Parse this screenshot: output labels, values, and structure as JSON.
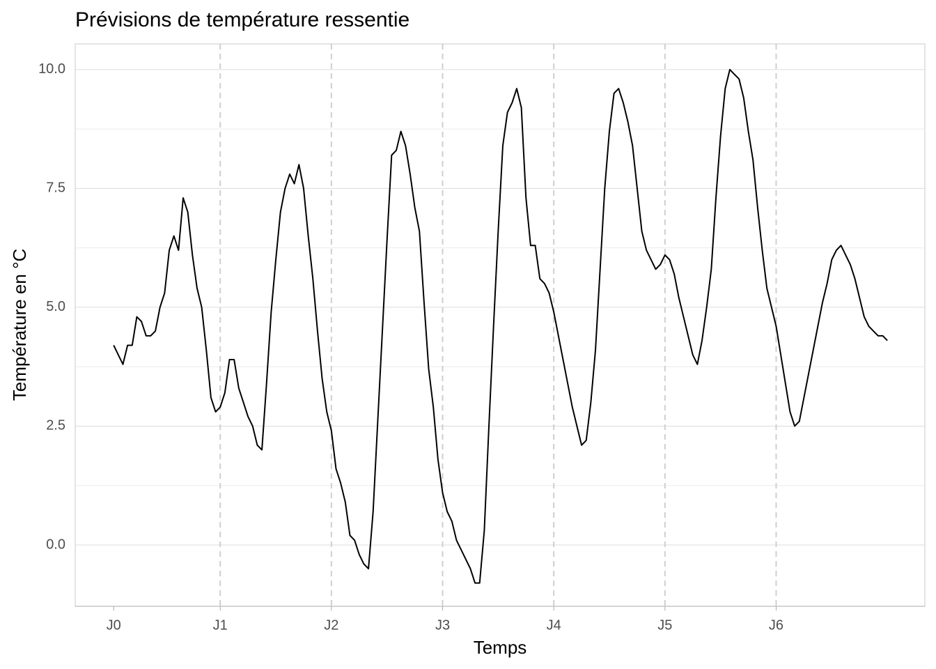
{
  "chart_data": {
    "type": "line",
    "title": "Prévisions de température ressentie",
    "x_label": "Temps",
    "y_label": "Température en °C",
    "x": [
      1,
      2,
      3,
      4,
      5,
      6,
      7,
      8,
      9,
      10,
      11,
      12,
      13,
      14,
      15,
      16,
      17,
      18,
      19,
      20,
      21,
      22,
      23,
      24,
      25,
      26,
      27,
      28,
      29,
      30,
      31,
      32,
      33,
      34,
      35,
      36,
      37,
      38,
      39,
      40,
      41,
      42,
      43,
      44,
      45,
      46,
      47,
      48,
      49,
      50,
      51,
      52,
      53,
      54,
      55,
      56,
      57,
      58,
      59,
      60,
      61,
      62,
      63,
      64,
      65,
      66,
      67,
      68,
      69,
      70,
      71,
      72,
      73,
      74,
      75,
      76,
      77,
      78,
      79,
      80,
      81,
      82,
      83,
      84,
      85,
      86,
      87,
      88,
      89,
      90,
      91,
      92,
      93,
      94,
      95,
      96,
      97,
      98,
      99,
      100,
      101,
      102,
      103,
      104,
      105,
      106,
      107,
      108,
      109,
      110,
      111,
      112,
      113,
      114,
      115,
      116,
      117,
      118,
      119,
      120,
      121,
      122,
      123,
      124,
      125,
      126,
      127,
      128,
      129,
      130,
      131,
      132,
      133,
      134,
      135,
      136,
      137,
      138,
      139,
      140,
      141,
      142,
      143,
      144,
      145,
      146,
      147,
      148,
      149,
      150,
      151,
      152,
      153,
      154,
      155,
      156,
      157,
      158,
      159,
      160,
      161,
      162,
      163,
      164,
      165,
      166,
      167,
      168
    ],
    "values": [
      4.2,
      4.0,
      3.8,
      4.2,
      4.2,
      4.8,
      4.7,
      4.4,
      4.4,
      4.5,
      5.0,
      5.3,
      6.2,
      6.5,
      6.2,
      7.3,
      7.0,
      6.1,
      5.4,
      5.0,
      4.1,
      3.1,
      2.8,
      2.9,
      3.2,
      3.9,
      3.9,
      3.3,
      3.0,
      2.7,
      2.5,
      2.1,
      2.0,
      3.4,
      4.9,
      6.0,
      7.0,
      7.5,
      7.8,
      7.6,
      8.0,
      7.5,
      6.5,
      5.6,
      4.5,
      3.5,
      2.8,
      2.4,
      1.6,
      1.3,
      0.9,
      0.2,
      0.1,
      -0.2,
      -0.4,
      -0.5,
      0.7,
      2.6,
      4.5,
      6.4,
      8.2,
      8.3,
      8.7,
      8.4,
      7.8,
      7.1,
      6.6,
      5.1,
      3.7,
      2.9,
      1.8,
      1.1,
      0.7,
      0.5,
      0.1,
      -0.1,
      -0.3,
      -0.5,
      -0.8,
      -0.8,
      0.3,
      2.5,
      4.6,
      6.6,
      8.4,
      9.1,
      9.3,
      9.6,
      9.2,
      7.3,
      6.3,
      6.3,
      5.6,
      5.5,
      5.3,
      4.9,
      4.4,
      3.9,
      3.4,
      2.9,
      2.5,
      2.1,
      2.2,
      3.0,
      4.1,
      5.8,
      7.5,
      8.7,
      9.5,
      9.6,
      9.3,
      8.9,
      8.4,
      7.5,
      6.6,
      6.2,
      6.0,
      5.8,
      5.9,
      6.1,
      6.0,
      5.7,
      5.2,
      4.8,
      4.4,
      4.0,
      3.8,
      4.3,
      5.0,
      5.8,
      7.3,
      8.6,
      9.6,
      10.0,
      9.9,
      9.8,
      9.4,
      8.7,
      8.1,
      7.1,
      6.2,
      5.4,
      5.0,
      4.6,
      4.0,
      3.4,
      2.8,
      2.5,
      2.6,
      3.1,
      3.6,
      4.1,
      4.6,
      5.1,
      5.5,
      6.0,
      6.2,
      6.3,
      6.1,
      5.9,
      5.6,
      5.2,
      4.8,
      4.6,
      4.5,
      4.4,
      4.4,
      4.3
    ],
    "color": "#000000",
    "xlim": [
      -7.3,
      176.1
    ],
    "xticks": [
      {
        "value": 1,
        "label": "J0"
      },
      {
        "value": 24,
        "label": "J1"
      },
      {
        "value": 48,
        "label": "J2"
      },
      {
        "value": 72,
        "label": "J3"
      },
      {
        "value": 96,
        "label": "J4"
      },
      {
        "value": 120,
        "label": "J5"
      },
      {
        "value": 144,
        "label": "J6"
      }
    ],
    "ylim": [
      -1.29,
      10.54
    ],
    "yticks": [
      {
        "value": 0,
        "label": "0.0"
      },
      2.5,
      {
        "value": 5,
        "label": "5.0"
      },
      7.5,
      {
        "value": 10,
        "label": "10.0"
      }
    ],
    "grid": true
  }
}
